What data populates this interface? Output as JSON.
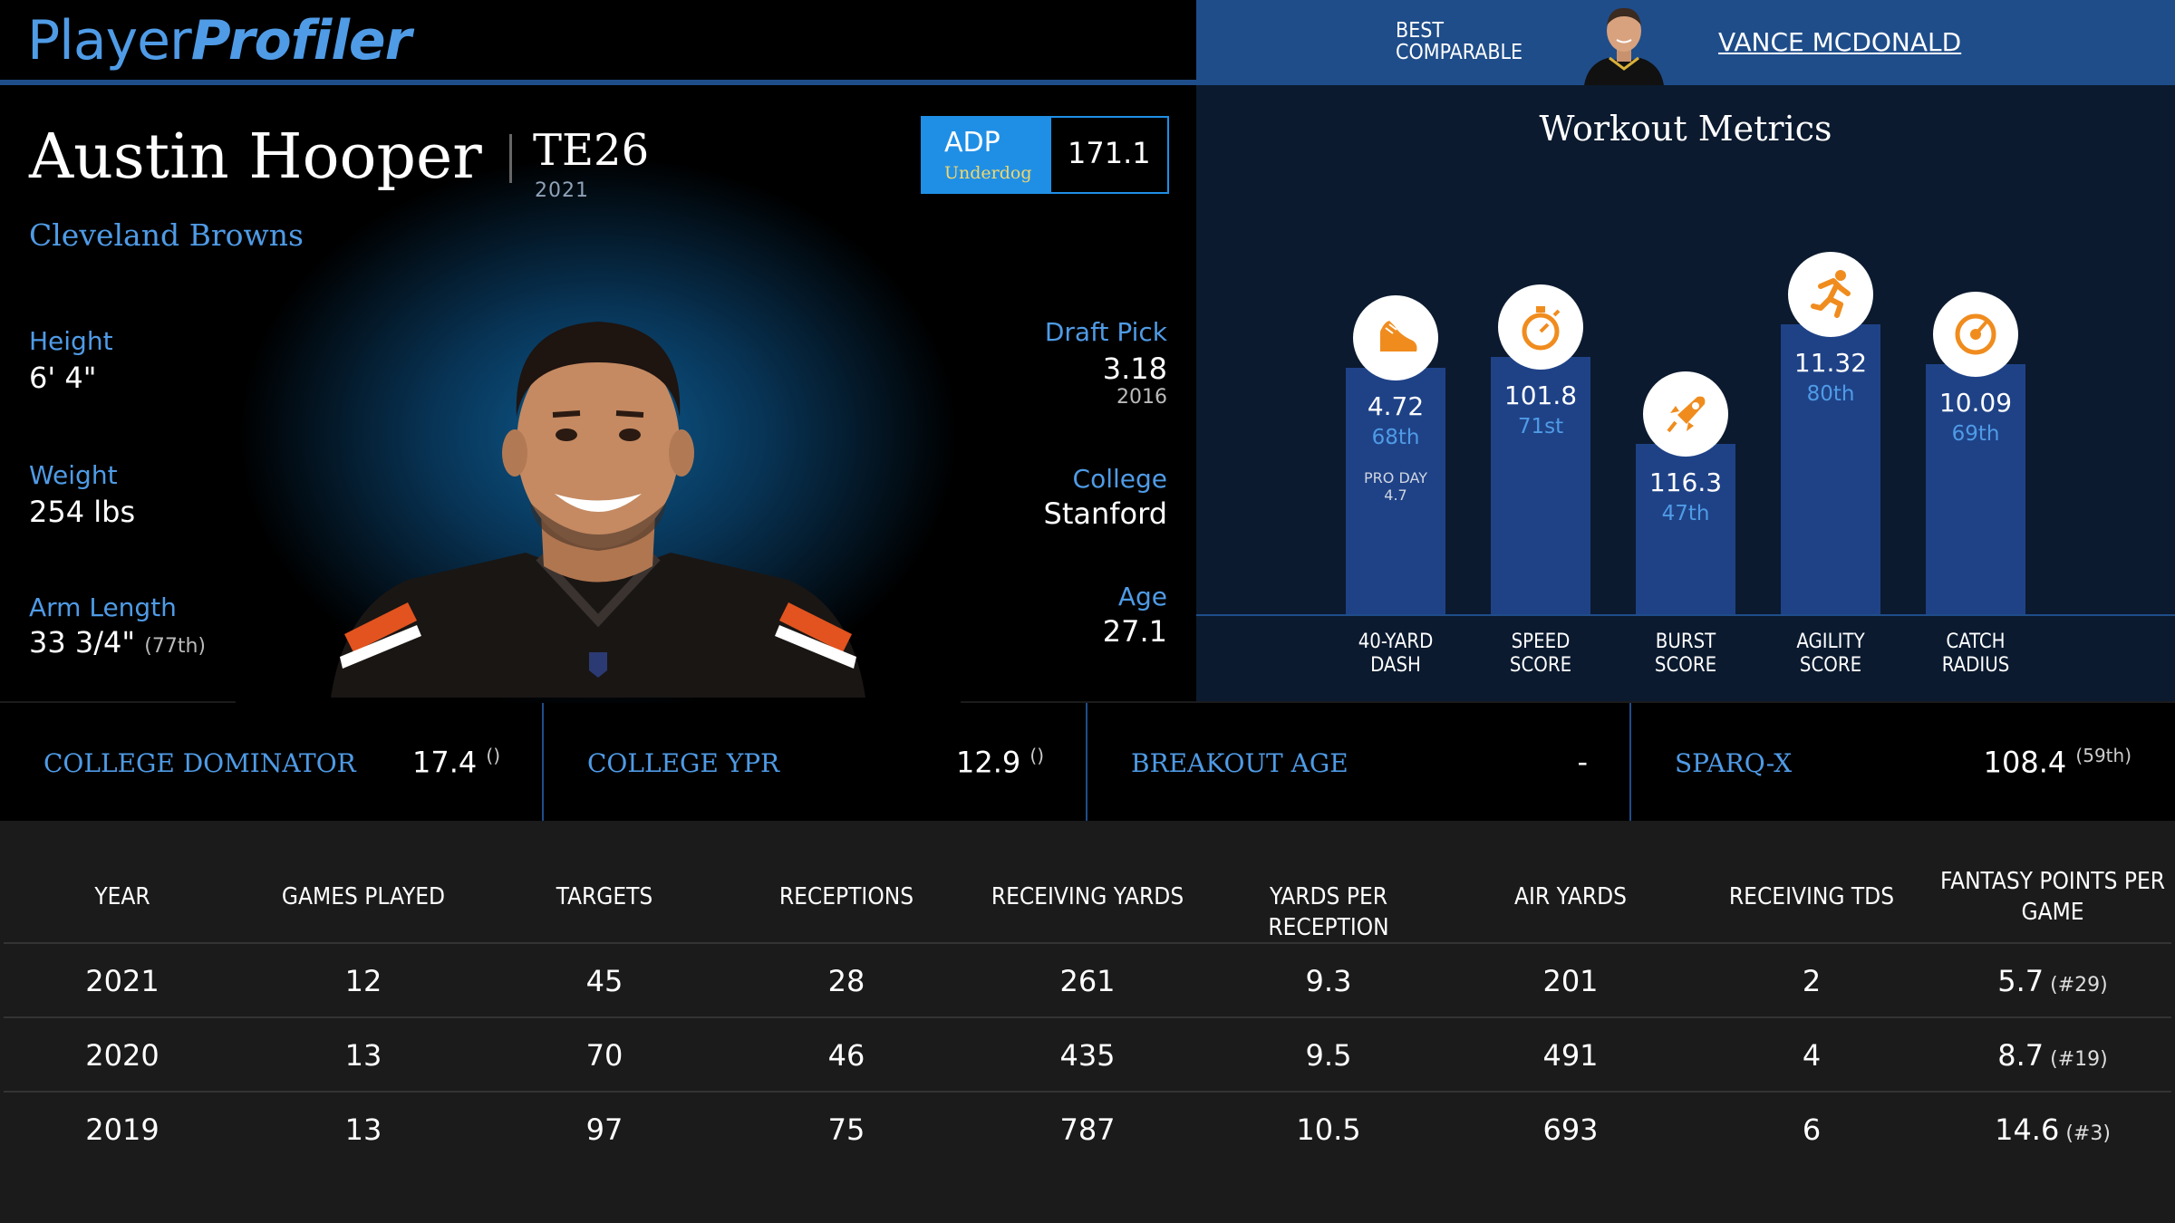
{
  "header": {
    "logo_part1": "Player",
    "logo_part2": "Profiler",
    "comparable_label_line1": "BEST",
    "comparable_label_line2": "COMPARABLE",
    "comparable_name": "VANCE MCDONALD"
  },
  "player": {
    "name": "Austin Hooper",
    "position": "TE26",
    "season": "2021",
    "team": "Cleveland Browns",
    "adp_label": "ADP",
    "adp_source": "Underdog",
    "adp_value": "171.1",
    "height_label": "Height",
    "height": "6' 4\"",
    "weight_label": "Weight",
    "weight": "254 lbs",
    "arm_label": "Arm Length",
    "arm": "33 3/4\"",
    "arm_pct": "(77th)",
    "draft_label": "Draft Pick",
    "draft_pick": "3.18",
    "draft_year": "2016",
    "college_label": "College",
    "college": "Stanford",
    "age_label": "Age",
    "age": "27.1"
  },
  "workout": {
    "title": "Workout Metrics",
    "bars": [
      {
        "icon": "shoe-icon",
        "value": "4.72",
        "pct": "68th",
        "note1": "PRO DAY",
        "note2": "4.7",
        "cat1": "40-YARD",
        "cat2": "DASH",
        "percentile": 68
      },
      {
        "icon": "stopwatch-icon",
        "value": "101.8",
        "pct": "71st",
        "note1": "",
        "note2": "",
        "cat1": "SPEED",
        "cat2": "SCORE",
        "percentile": 71
      },
      {
        "icon": "rocket-icon",
        "value": "116.3",
        "pct": "47th",
        "note1": "",
        "note2": "",
        "cat1": "BURST",
        "cat2": "SCORE",
        "percentile": 47
      },
      {
        "icon": "runner-icon",
        "value": "11.32",
        "pct": "80th",
        "note1": "",
        "note2": "",
        "cat1": "AGILITY",
        "cat2": "SCORE",
        "percentile": 80
      },
      {
        "icon": "target-icon",
        "value": "10.09",
        "pct": "69th",
        "note1": "",
        "note2": "",
        "cat1": "CATCH",
        "cat2": "RADIUS",
        "percentile": 69
      }
    ],
    "icon_color": "#f08c1e"
  },
  "metrics": [
    {
      "label": "COLLEGE DOMINATOR",
      "value": "17.4",
      "extra": "()"
    },
    {
      "label": "COLLEGE YPR",
      "value": "12.9",
      "extra": "()"
    },
    {
      "label": "BREAKOUT AGE",
      "value": "-",
      "extra": ""
    },
    {
      "label": "SPARQ-X",
      "value": "108.4",
      "extra": "(59th)"
    }
  ],
  "table": {
    "headers": [
      "YEAR",
      "GAMES PLAYED",
      "TARGETS",
      "RECEPTIONS",
      "RECEIVING YARDS",
      "YARDS PER RECEPTION",
      "AIR YARDS",
      "RECEIVING TDS",
      "FANTASY POINTS PER GAME"
    ],
    "rows": [
      {
        "cells": [
          "2021",
          "12",
          "45",
          "28",
          "261",
          "9.3",
          "201",
          "2",
          "5.7"
        ],
        "rank": "(#29)"
      },
      {
        "cells": [
          "2020",
          "13",
          "70",
          "46",
          "435",
          "9.5",
          "491",
          "4",
          "8.7"
        ],
        "rank": "(#19)"
      },
      {
        "cells": [
          "2019",
          "13",
          "97",
          "75",
          "787",
          "10.5",
          "693",
          "6",
          "14.6"
        ],
        "rank": "(#3)"
      }
    ]
  },
  "colors": {
    "accent": "#4f9be6",
    "brand_blue": "#1f4d8a",
    "bar_blue": "#1f4287",
    "adp_blue": "#1f8fe6",
    "browns_orange": "#e2531f"
  }
}
